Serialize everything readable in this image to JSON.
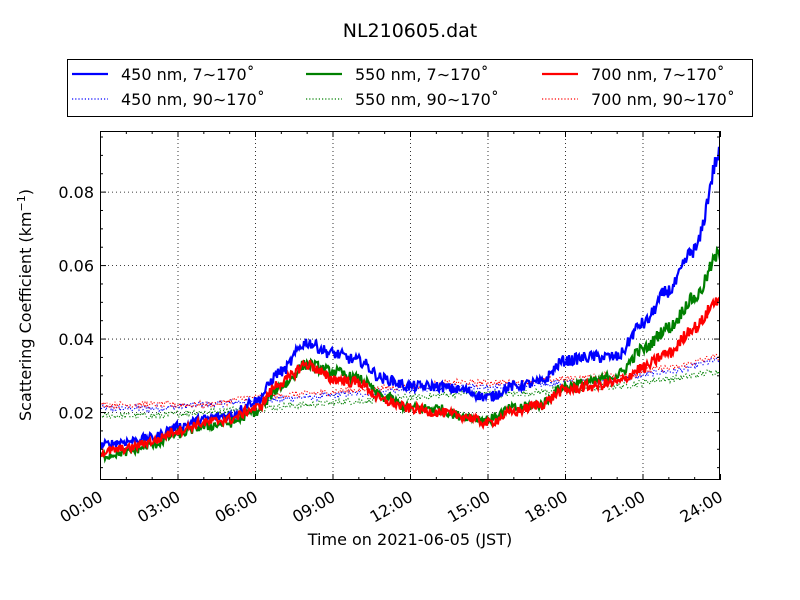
{
  "chart_data": {
    "type": "line",
    "title": "NL210605.dat",
    "xlabel": "Time on 2021-06-05 (JST)",
    "ylabel_main": "Scattering Coefficient (km",
    "ylabel_sup": "−1",
    "ylabel_tail": ")",
    "xlim": [
      "00:00",
      "24:00"
    ],
    "ylim": [
      0.0015,
      0.0965
    ],
    "x_ticks": [
      "00:00",
      "03:00",
      "06:00",
      "09:00",
      "12:00",
      "15:00",
      "18:00",
      "21:00",
      "24:00"
    ],
    "y_ticks": [
      "0.02",
      "0.04",
      "0.06",
      "0.08"
    ],
    "y_tick_values": [
      0.02,
      0.04,
      0.06,
      0.08
    ],
    "grid": true,
    "legend_position": "top",
    "series": [
      {
        "name": "450 nm, 7∼170˚",
        "color": "#0000ff",
        "style": "solid",
        "x": [
          0,
          1,
          2,
          3,
          4,
          5,
          6,
          7,
          8,
          9,
          10,
          11,
          12,
          13,
          14,
          15,
          16,
          17,
          18,
          19,
          20,
          21,
          22,
          23,
          24
        ],
        "y": [
          0.011,
          0.012,
          0.013,
          0.016,
          0.018,
          0.019,
          0.023,
          0.031,
          0.039,
          0.036,
          0.034,
          0.029,
          0.027,
          0.027,
          0.026,
          0.024,
          0.027,
          0.028,
          0.034,
          0.035,
          0.035,
          0.044,
          0.053,
          0.064,
          0.09
        ]
      },
      {
        "name": "450 nm, 90∼170˚",
        "color": "#0000ff",
        "style": "dotted",
        "x": [
          0,
          2,
          4,
          6,
          8,
          10,
          12,
          14,
          16,
          18,
          20,
          22,
          24
        ],
        "y": [
          0.021,
          0.021,
          0.022,
          0.023,
          0.024,
          0.025,
          0.026,
          0.027,
          0.027,
          0.028,
          0.029,
          0.031,
          0.034
        ]
      },
      {
        "name": "550 nm, 7∼170˚",
        "color": "#008000",
        "style": "solid",
        "x": [
          0,
          1,
          2,
          3,
          4,
          5,
          6,
          7,
          8,
          9,
          10,
          11,
          12,
          13,
          14,
          15,
          16,
          17,
          18,
          19,
          20,
          21,
          22,
          23,
          24
        ],
        "y": [
          0.008,
          0.009,
          0.011,
          0.014,
          0.016,
          0.017,
          0.02,
          0.027,
          0.033,
          0.031,
          0.029,
          0.024,
          0.021,
          0.021,
          0.019,
          0.018,
          0.021,
          0.022,
          0.027,
          0.028,
          0.03,
          0.037,
          0.043,
          0.051,
          0.063
        ]
      },
      {
        "name": "550 nm, 90∼170˚",
        "color": "#008000",
        "style": "dotted",
        "x": [
          0,
          2,
          4,
          6,
          8,
          10,
          12,
          14,
          16,
          18,
          20,
          22,
          24
        ],
        "y": [
          0.019,
          0.019,
          0.02,
          0.021,
          0.022,
          0.023,
          0.024,
          0.025,
          0.025,
          0.026,
          0.027,
          0.029,
          0.031
        ]
      },
      {
        "name": "700 nm, 7∼170˚",
        "color": "#ff0000",
        "style": "solid",
        "x": [
          0,
          1,
          2,
          3,
          4,
          5,
          6,
          7,
          8,
          9,
          10,
          11,
          12,
          13,
          14,
          15,
          16,
          17,
          18,
          19,
          20,
          21,
          22,
          23,
          24
        ],
        "y": [
          0.009,
          0.01,
          0.012,
          0.015,
          0.017,
          0.018,
          0.021,
          0.028,
          0.033,
          0.029,
          0.028,
          0.023,
          0.021,
          0.02,
          0.019,
          0.017,
          0.02,
          0.022,
          0.026,
          0.027,
          0.028,
          0.032,
          0.036,
          0.043,
          0.051
        ]
      },
      {
        "name": "700 nm, 90∼170˚",
        "color": "#ff0000",
        "style": "dotted",
        "x": [
          0,
          2,
          4,
          6,
          8,
          10,
          12,
          14,
          16,
          18,
          20,
          22,
          24
        ],
        "y": [
          0.022,
          0.022,
          0.022,
          0.024,
          0.025,
          0.026,
          0.027,
          0.028,
          0.028,
          0.029,
          0.03,
          0.032,
          0.035
        ]
      }
    ]
  }
}
